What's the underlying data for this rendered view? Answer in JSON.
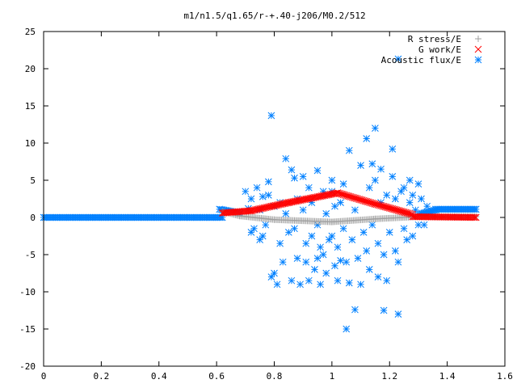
{
  "chart_data": {
    "type": "scatter",
    "title": "m1/n1.5/q1.65/r-+.40-j206/M0.2/512",
    "xlabel": "",
    "ylabel": "",
    "xlim": [
      0,
      1.6
    ],
    "ylim": [
      -20,
      25
    ],
    "xticks": [
      0,
      0.2,
      0.4,
      0.6,
      0.8,
      1,
      1.2,
      1.4,
      1.6
    ],
    "yticks": [
      -20,
      -15,
      -10,
      -5,
      0,
      5,
      10,
      15,
      20,
      25
    ],
    "grid": false,
    "legend_position": "top-right",
    "series": [
      {
        "name": "R stress/E",
        "marker": "plus",
        "color": "#a0a0a0",
        "dense_segments": [
          {
            "x_start": 0.62,
            "x_end": 0.68,
            "y_start": 0.8,
            "y_end": 0.2
          },
          {
            "x_start": 0.68,
            "x_end": 0.8,
            "y_start": 0.2,
            "y_end": -0.3
          },
          {
            "x_start": 0.8,
            "x_end": 1.0,
            "y_start": -0.3,
            "y_end": -0.6
          },
          {
            "x_start": 1.0,
            "x_end": 1.15,
            "y_start": -0.6,
            "y_end": -0.2
          },
          {
            "x_start": 1.15,
            "x_end": 1.3,
            "y_start": -0.2,
            "y_end": 0.1
          },
          {
            "x_start": 1.3,
            "x_end": 1.5,
            "y_start": 0.1,
            "y_end": 0.1
          }
        ]
      },
      {
        "name": "G work/E",
        "marker": "cross",
        "color": "#ff0000",
        "dense_segments": [
          {
            "x_start": 0.62,
            "x_end": 0.72,
            "y_start": 0.6,
            "y_end": 0.9
          },
          {
            "x_start": 0.72,
            "x_end": 0.85,
            "y_start": 0.9,
            "y_end": 2.0
          },
          {
            "x_start": 0.85,
            "x_end": 1.02,
            "y_start": 2.0,
            "y_end": 3.3
          },
          {
            "x_start": 1.02,
            "x_end": 1.15,
            "y_start": 3.3,
            "y_end": 1.8
          },
          {
            "x_start": 1.15,
            "x_end": 1.28,
            "y_start": 1.8,
            "y_end": 0.4
          },
          {
            "x_start": 1.28,
            "x_end": 1.5,
            "y_start": 0.1,
            "y_end": 0.0
          }
        ]
      },
      {
        "name": "Acoustic flux/E",
        "marker": "star",
        "color": "#0080ff",
        "dense_segments": [
          {
            "x_start": 0.0,
            "x_end": 0.62,
            "y_start": 0.0,
            "y_end": 0.0
          },
          {
            "x_start": 0.61,
            "x_end": 0.68,
            "y_start": 1.1,
            "y_end": 0.6
          },
          {
            "x_start": 1.3,
            "x_end": 1.36,
            "y_start": 0.4,
            "y_end": 1.0
          },
          {
            "x_start": 1.36,
            "x_end": 1.5,
            "y_start": 1.1,
            "y_end": 1.1
          }
        ],
        "points": [
          [
            0.68,
            0.5
          ],
          [
            0.7,
            3.5
          ],
          [
            0.71,
            1.2
          ],
          [
            0.72,
            2.5
          ],
          [
            0.72,
            -2.0
          ],
          [
            0.73,
            -1.5
          ],
          [
            0.74,
            4.0
          ],
          [
            0.75,
            -3.0
          ],
          [
            0.75,
            1.0
          ],
          [
            0.76,
            2.8
          ],
          [
            0.76,
            -2.5
          ],
          [
            0.77,
            -1.0
          ],
          [
            0.78,
            3.0
          ],
          [
            0.78,
            4.8
          ],
          [
            0.79,
            13.7
          ],
          [
            0.79,
            -8.0
          ],
          [
            0.8,
            1.5
          ],
          [
            0.8,
            -7.5
          ],
          [
            0.81,
            -9.0
          ],
          [
            0.82,
            -3.5
          ],
          [
            0.82,
            2.0
          ],
          [
            0.83,
            -6.0
          ],
          [
            0.84,
            7.9
          ],
          [
            0.84,
            0.5
          ],
          [
            0.85,
            -2.0
          ],
          [
            0.86,
            6.4
          ],
          [
            0.86,
            -8.5
          ],
          [
            0.87,
            5.3
          ],
          [
            0.87,
            -1.5
          ],
          [
            0.88,
            2.5
          ],
          [
            0.88,
            -5.5
          ],
          [
            0.89,
            -9.0
          ],
          [
            0.9,
            5.5
          ],
          [
            0.9,
            1.0
          ],
          [
            0.91,
            -3.5
          ],
          [
            0.91,
            -6.0
          ],
          [
            0.92,
            4.0
          ],
          [
            0.92,
            -8.5
          ],
          [
            0.93,
            -2.5
          ],
          [
            0.93,
            2.0
          ],
          [
            0.94,
            -7.0
          ],
          [
            0.95,
            6.3
          ],
          [
            0.95,
            -1.0
          ],
          [
            0.96,
            -4.0
          ],
          [
            0.96,
            -9.0
          ],
          [
            0.97,
            3.5
          ],
          [
            0.97,
            -5.0
          ],
          [
            0.98,
            0.5
          ],
          [
            0.98,
            -7.5
          ],
          [
            0.99,
            -3.0
          ],
          [
            1.0,
            5.0
          ],
          [
            1.0,
            -2.5
          ],
          [
            1.01,
            -6.5
          ],
          [
            1.01,
            1.5
          ],
          [
            1.02,
            -4.0
          ],
          [
            1.02,
            -8.5
          ],
          [
            1.03,
            2.0
          ],
          [
            1.03,
            -5.8
          ],
          [
            1.04,
            4.5
          ],
          [
            1.04,
            -1.5
          ],
          [
            1.05,
            -6.0
          ],
          [
            1.05,
            -15.0
          ],
          [
            1.06,
            9.0
          ],
          [
            1.06,
            -8.8
          ],
          [
            1.07,
            -3.0
          ],
          [
            1.08,
            -12.4
          ],
          [
            1.08,
            1.0
          ],
          [
            1.09,
            -5.5
          ],
          [
            1.1,
            7.0
          ],
          [
            1.1,
            -9.0
          ],
          [
            1.11,
            -2.0
          ],
          [
            1.12,
            10.6
          ],
          [
            1.12,
            -4.5
          ],
          [
            1.13,
            4.0
          ],
          [
            1.13,
            -7.0
          ],
          [
            1.14,
            7.2
          ],
          [
            1.14,
            -1.0
          ],
          [
            1.15,
            5.0
          ],
          [
            1.15,
            12.0
          ],
          [
            1.16,
            -3.5
          ],
          [
            1.16,
            -8.0
          ],
          [
            1.17,
            6.5
          ],
          [
            1.17,
            2.0
          ],
          [
            1.18,
            -5.0
          ],
          [
            1.18,
            -12.5
          ],
          [
            1.19,
            3.0
          ],
          [
            1.19,
            -8.5
          ],
          [
            1.2,
            -2.0
          ],
          [
            1.21,
            9.2
          ],
          [
            1.21,
            5.5
          ],
          [
            1.22,
            -4.5
          ],
          [
            1.22,
            2.5
          ],
          [
            1.23,
            -13.0
          ],
          [
            1.23,
            -6.0
          ],
          [
            1.24,
            3.5
          ],
          [
            1.25,
            -1.5
          ],
          [
            1.25,
            4.0
          ],
          [
            1.26,
            -3.0
          ],
          [
            1.27,
            2.0
          ],
          [
            1.27,
            5.0
          ],
          [
            1.28,
            -2.5
          ],
          [
            1.28,
            3.0
          ],
          [
            1.29,
            1.0
          ],
          [
            1.3,
            4.5
          ],
          [
            1.3,
            -1.0
          ],
          [
            1.31,
            2.5
          ],
          [
            1.32,
            -1.0
          ],
          [
            1.33,
            1.5
          ],
          [
            1.34,
            0.5
          ],
          [
            1.23,
            21.3
          ],
          [
            1.0,
            3.5
          ],
          [
            0.95,
            -5.5
          ]
        ]
      }
    ]
  }
}
